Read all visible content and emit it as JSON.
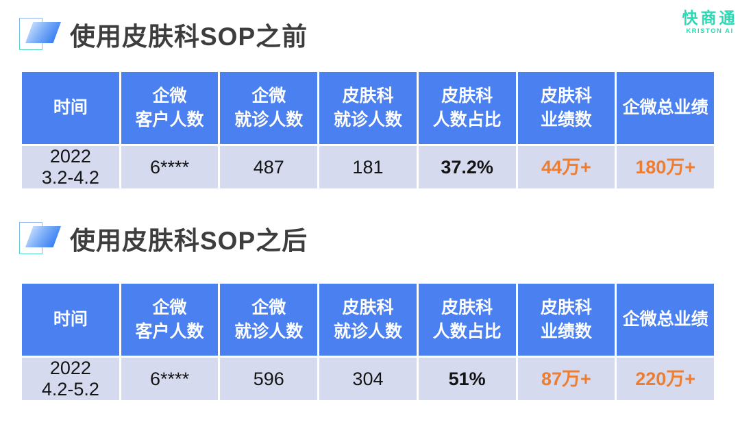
{
  "logo": {
    "brand": "快商通",
    "subbrand": "KRISTON AI",
    "color": "#2bd9b4"
  },
  "colors": {
    "table_header_bg": "#4a80f0",
    "table_row_bg": "#d6daee",
    "accent_orange": "#ed7d31",
    "title_gray": "#3d3d3d",
    "marker_gradient_start": "#e4f0ff",
    "marker_gradient_end": "#1c69f0",
    "marker_outline_top": "#8fb2f2",
    "marker_outline_bottom": "#55d9c6"
  },
  "table_headers": [
    "时间",
    "企微\n客户人数",
    "企微\n就诊人数",
    "皮肤科\n就诊人数",
    "皮肤科\n人数占比",
    "皮肤科\n业绩数",
    "企微总业绩"
  ],
  "sections": [
    {
      "title": "使用皮肤科SOP之前",
      "cells": [
        "2022\n3.2-4.2",
        "6****",
        "487",
        "181",
        "37.2%",
        "44万+",
        "180万+"
      ]
    },
    {
      "title": "使用皮肤科SOP之后",
      "cells": [
        "2022\n4.2-5.2",
        "6****",
        "596",
        "304",
        "51%",
        "87万+",
        "220万+"
      ]
    }
  ]
}
